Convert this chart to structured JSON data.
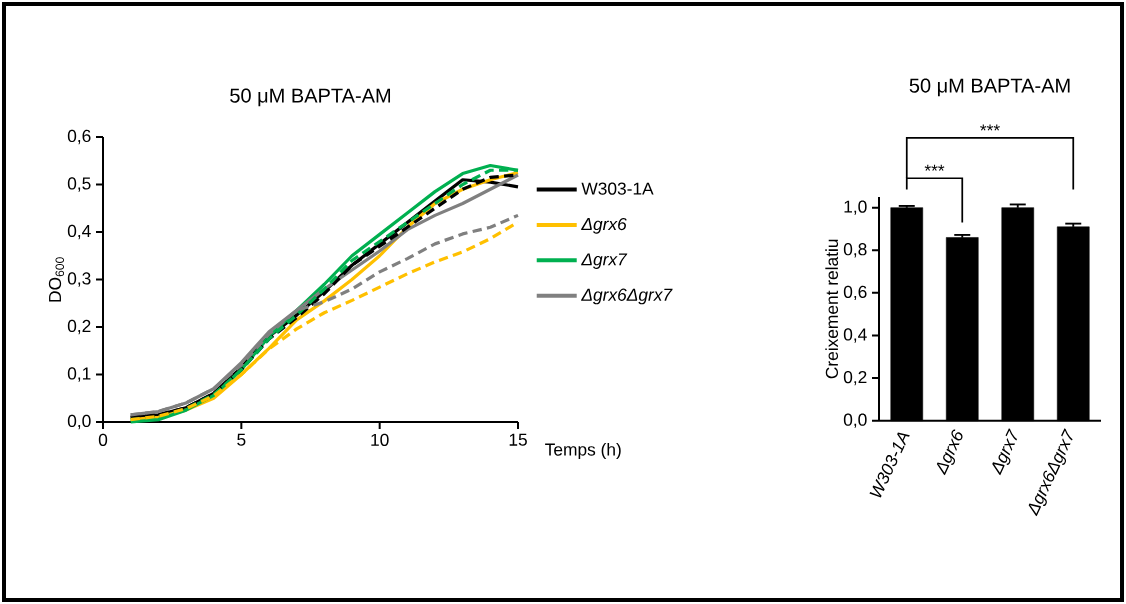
{
  "chart_data": [
    {
      "type": "line",
      "title": "50 μM BAPTA-AM",
      "xlabel": "Temps (h)",
      "ylabel": "DO$_{600}$",
      "x": [
        1,
        2,
        3,
        4,
        5,
        6,
        7,
        8,
        9,
        10,
        11,
        12,
        13,
        14,
        15
      ],
      "xlim": [
        0,
        15
      ],
      "xticks": [
        0,
        5,
        10,
        15
      ],
      "ylim": [
        0,
        0.6
      ],
      "yticks": [
        {
          "value": 0,
          "label": "0,0"
        },
        {
          "value": 0.1,
          "label": "0,1"
        },
        {
          "value": 0.2,
          "label": "0,2"
        },
        {
          "value": 0.3,
          "label": "0,3"
        },
        {
          "value": 0.4,
          "label": "0,4"
        },
        {
          "value": 0.5,
          "label": "0,5"
        },
        {
          "value": 0.6,
          "label": "0,6"
        }
      ],
      "legend": "right",
      "series": [
        {
          "name": "W303-1A",
          "color": "#000000",
          "line_style": "solid",
          "values": [
            0.01,
            0.015,
            0.03,
            0.06,
            0.115,
            0.18,
            0.225,
            0.275,
            0.33,
            0.375,
            0.42,
            0.465,
            0.51,
            0.505,
            0.495
          ]
        },
        {
          "name": "*Δgrx6*",
          "color": "#ffc000",
          "line_style": "solid",
          "values": [
            0.005,
            0.01,
            0.025,
            0.05,
            0.1,
            0.155,
            0.215,
            0.255,
            0.3,
            0.35,
            0.41,
            0.46,
            0.49,
            0.51,
            0.525
          ]
        },
        {
          "name": "*Δgrx7*",
          "color": "#00b050",
          "line_style": "solid",
          "values": [
            0.0,
            0.005,
            0.025,
            0.056,
            0.11,
            0.18,
            0.235,
            0.29,
            0.35,
            0.395,
            0.44,
            0.485,
            0.523,
            0.54,
            0.53
          ]
        },
        {
          "name": "*Δgrx6Δgrx7*",
          "color": "#808080",
          "line_style": "solid",
          "values": [
            0.015,
            0.022,
            0.04,
            0.07,
            0.125,
            0.19,
            0.235,
            0.28,
            0.32,
            0.36,
            0.405,
            0.435,
            0.46,
            0.49,
            0.52
          ]
        },
        {
          "color": "#000000",
          "line_style": "dashed",
          "values": [
            0.01,
            0.015,
            0.03,
            0.06,
            0.11,
            0.175,
            0.22,
            0.27,
            0.33,
            0.37,
            0.41,
            0.45,
            0.49,
            0.515,
            0.52
          ]
        },
        {
          "color": "#00b050",
          "line_style": "dashed",
          "values": [
            0.005,
            0.01,
            0.028,
            0.058,
            0.11,
            0.175,
            0.225,
            0.28,
            0.34,
            0.38,
            0.42,
            0.46,
            0.5,
            0.53,
            0.53
          ]
        },
        {
          "color": "#ffc000",
          "line_style": "dashed",
          "values": [
            0.005,
            0.012,
            0.028,
            0.055,
            0.1,
            0.154,
            0.196,
            0.23,
            0.256,
            0.284,
            0.312,
            0.337,
            0.358,
            0.386,
            0.421
          ]
        },
        {
          "color": "#808080",
          "line_style": "dashed",
          "values": [
            0.015,
            0.022,
            0.04,
            0.07,
            0.12,
            0.185,
            0.235,
            0.253,
            0.28,
            0.316,
            0.344,
            0.375,
            0.396,
            0.41,
            0.435
          ]
        }
      ]
    },
    {
      "type": "bar",
      "title": "50 μM BAPTA-AM",
      "ylabel": "Creixement relatiu",
      "categories": [
        "W303-1A",
        "Δgrx6",
        "Δgrx7",
        "Δgrx6Δgrx7"
      ],
      "values": [
        1.0,
        0.86,
        1.0,
        0.91
      ],
      "errors": [
        0.008,
        0.012,
        0.015,
        0.015
      ],
      "color": "#000000",
      "ylim": [
        0,
        1.05
      ],
      "yticks": [
        {
          "value": 0,
          "label": "0,0"
        },
        {
          "value": 0.2,
          "label": "0,2"
        },
        {
          "value": 0.4,
          "label": "0,4"
        },
        {
          "value": 0.6,
          "label": "0,6"
        },
        {
          "value": 0.8,
          "label": "0,8"
        },
        {
          "value": 1.0,
          "label": "1,0"
        }
      ],
      "annotations": [
        "***",
        "***"
      ]
    }
  ]
}
